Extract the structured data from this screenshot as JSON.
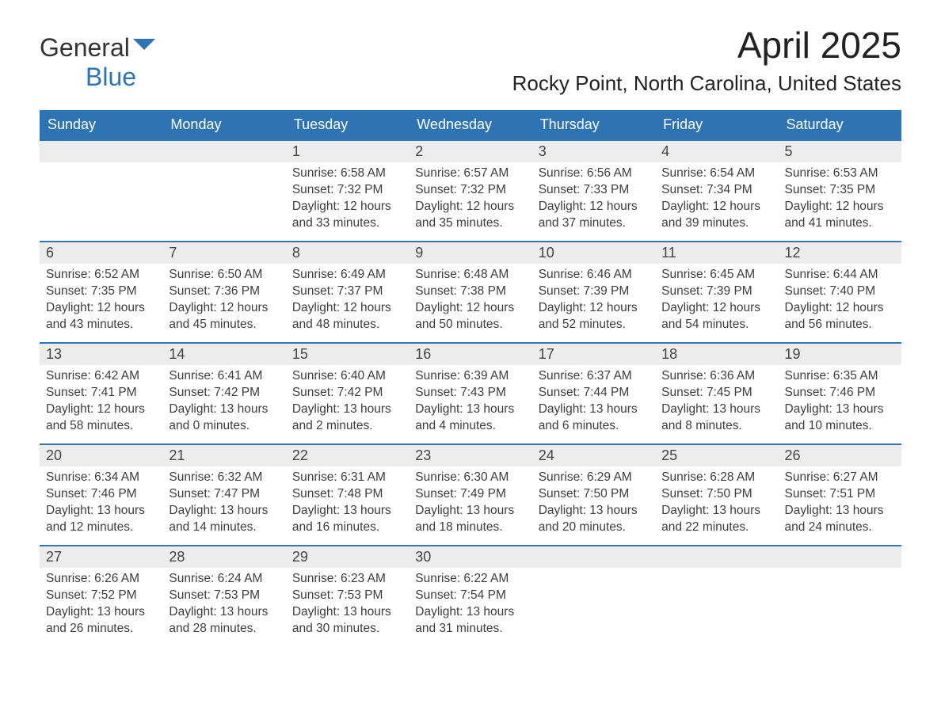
{
  "brand": {
    "name_a": "General",
    "name_b": "Blue"
  },
  "title": "April 2025",
  "location": "Rocky Point, North Carolina, United States",
  "colors": {
    "header_bg": "#2e74b5",
    "header_fg": "#ffffff",
    "daynum_bg": "#ececec",
    "text": "#3a3a3a",
    "row_border": "#2e74b5",
    "page_bg": "#ffffff"
  },
  "fonts": {
    "title_pt": 46,
    "location_pt": 26,
    "weekday_pt": 18,
    "daynum_pt": 18,
    "body_pt": 15.5
  },
  "weekdays": [
    "Sunday",
    "Monday",
    "Tuesday",
    "Wednesday",
    "Thursday",
    "Friday",
    "Saturday"
  ],
  "weeks": [
    [
      null,
      null,
      {
        "n": "1",
        "sunrise": "6:58 AM",
        "sunset": "7:32 PM",
        "daylight": "12 hours and 33 minutes."
      },
      {
        "n": "2",
        "sunrise": "6:57 AM",
        "sunset": "7:32 PM",
        "daylight": "12 hours and 35 minutes."
      },
      {
        "n": "3",
        "sunrise": "6:56 AM",
        "sunset": "7:33 PM",
        "daylight": "12 hours and 37 minutes."
      },
      {
        "n": "4",
        "sunrise": "6:54 AM",
        "sunset": "7:34 PM",
        "daylight": "12 hours and 39 minutes."
      },
      {
        "n": "5",
        "sunrise": "6:53 AM",
        "sunset": "7:35 PM",
        "daylight": "12 hours and 41 minutes."
      }
    ],
    [
      {
        "n": "6",
        "sunrise": "6:52 AM",
        "sunset": "7:35 PM",
        "daylight": "12 hours and 43 minutes."
      },
      {
        "n": "7",
        "sunrise": "6:50 AM",
        "sunset": "7:36 PM",
        "daylight": "12 hours and 45 minutes."
      },
      {
        "n": "8",
        "sunrise": "6:49 AM",
        "sunset": "7:37 PM",
        "daylight": "12 hours and 48 minutes."
      },
      {
        "n": "9",
        "sunrise": "6:48 AM",
        "sunset": "7:38 PM",
        "daylight": "12 hours and 50 minutes."
      },
      {
        "n": "10",
        "sunrise": "6:46 AM",
        "sunset": "7:39 PM",
        "daylight": "12 hours and 52 minutes."
      },
      {
        "n": "11",
        "sunrise": "6:45 AM",
        "sunset": "7:39 PM",
        "daylight": "12 hours and 54 minutes."
      },
      {
        "n": "12",
        "sunrise": "6:44 AM",
        "sunset": "7:40 PM",
        "daylight": "12 hours and 56 minutes."
      }
    ],
    [
      {
        "n": "13",
        "sunrise": "6:42 AM",
        "sunset": "7:41 PM",
        "daylight": "12 hours and 58 minutes."
      },
      {
        "n": "14",
        "sunrise": "6:41 AM",
        "sunset": "7:42 PM",
        "daylight": "13 hours and 0 minutes."
      },
      {
        "n": "15",
        "sunrise": "6:40 AM",
        "sunset": "7:42 PM",
        "daylight": "13 hours and 2 minutes."
      },
      {
        "n": "16",
        "sunrise": "6:39 AM",
        "sunset": "7:43 PM",
        "daylight": "13 hours and 4 minutes."
      },
      {
        "n": "17",
        "sunrise": "6:37 AM",
        "sunset": "7:44 PM",
        "daylight": "13 hours and 6 minutes."
      },
      {
        "n": "18",
        "sunrise": "6:36 AM",
        "sunset": "7:45 PM",
        "daylight": "13 hours and 8 minutes."
      },
      {
        "n": "19",
        "sunrise": "6:35 AM",
        "sunset": "7:46 PM",
        "daylight": "13 hours and 10 minutes."
      }
    ],
    [
      {
        "n": "20",
        "sunrise": "6:34 AM",
        "sunset": "7:46 PM",
        "daylight": "13 hours and 12 minutes."
      },
      {
        "n": "21",
        "sunrise": "6:32 AM",
        "sunset": "7:47 PM",
        "daylight": "13 hours and 14 minutes."
      },
      {
        "n": "22",
        "sunrise": "6:31 AM",
        "sunset": "7:48 PM",
        "daylight": "13 hours and 16 minutes."
      },
      {
        "n": "23",
        "sunrise": "6:30 AM",
        "sunset": "7:49 PM",
        "daylight": "13 hours and 18 minutes."
      },
      {
        "n": "24",
        "sunrise": "6:29 AM",
        "sunset": "7:50 PM",
        "daylight": "13 hours and 20 minutes."
      },
      {
        "n": "25",
        "sunrise": "6:28 AM",
        "sunset": "7:50 PM",
        "daylight": "13 hours and 22 minutes."
      },
      {
        "n": "26",
        "sunrise": "6:27 AM",
        "sunset": "7:51 PM",
        "daylight": "13 hours and 24 minutes."
      }
    ],
    [
      {
        "n": "27",
        "sunrise": "6:26 AM",
        "sunset": "7:52 PM",
        "daylight": "13 hours and 26 minutes."
      },
      {
        "n": "28",
        "sunrise": "6:24 AM",
        "sunset": "7:53 PM",
        "daylight": "13 hours and 28 minutes."
      },
      {
        "n": "29",
        "sunrise": "6:23 AM",
        "sunset": "7:53 PM",
        "daylight": "13 hours and 30 minutes."
      },
      {
        "n": "30",
        "sunrise": "6:22 AM",
        "sunset": "7:54 PM",
        "daylight": "13 hours and 31 minutes."
      },
      null,
      null,
      null
    ]
  ],
  "labels": {
    "sunrise": "Sunrise: ",
    "sunset": "Sunset: ",
    "daylight": "Daylight: "
  }
}
